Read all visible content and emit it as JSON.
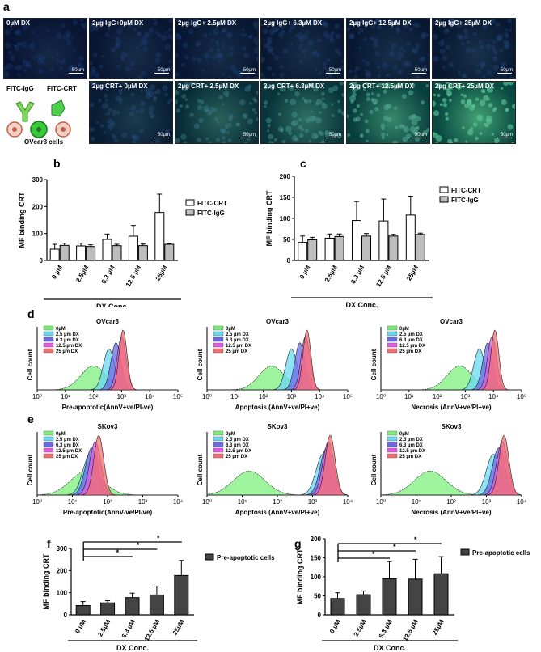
{
  "panel_labels": {
    "a": "a",
    "b": "b",
    "c": "c",
    "d": "d",
    "e": "e",
    "f": "f",
    "g": "g"
  },
  "micro": {
    "scale_bar": "50µm",
    "top_row": [
      {
        "label": "0µM DX",
        "green": 0.0
      },
      {
        "label": "2µg IgG+0µM DX",
        "green": 0.03
      },
      {
        "label": "2µg IgG+ 2.5µM DX",
        "green": 0.04
      },
      {
        "label": "2µg IgG+ 6.3µM DX",
        "green": 0.05
      },
      {
        "label": "2µg IgG+ 12.5µM DX",
        "green": 0.05
      },
      {
        "label": "2µg IgG+ 25µM DX",
        "green": 0.06
      }
    ],
    "bottom_row": [
      {
        "label": "2µg CRT+ 0µM DX",
        "green": 0.12
      },
      {
        "label": "2µg CRT+ 2.5µM DX",
        "green": 0.35
      },
      {
        "label": "2µg CRT+ 6.3µM DX",
        "green": 0.45
      },
      {
        "label": "2µg CRT+ 12.5µM DX",
        "green": 0.6
      },
      {
        "label": "2µg CRT+ 25µM DX",
        "green": 0.75
      }
    ],
    "schematic": {
      "igg": "FITC-IgG",
      "crt": "FITC-CRT",
      "cells": "OVcar3 cells"
    }
  },
  "chart_data": [
    {
      "id": "b",
      "type": "bar",
      "categories": [
        "0 µM",
        "2.5µM",
        "6.3 µM",
        "12.5 µM",
        "25µM"
      ],
      "series": [
        {
          "name": "FITC-CRT",
          "values": [
            42,
            54,
            78,
            90,
            178
          ],
          "errors": [
            18,
            10,
            20,
            40,
            68
          ],
          "color": "#ffffff"
        },
        {
          "name": "FITC-IgG",
          "values": [
            56,
            52,
            55,
            55,
            60
          ],
          "errors": [
            8,
            6,
            5,
            6,
            3
          ],
          "color": "#bdbdbd"
        }
      ],
      "ylabel": "MF binding CRT",
      "xlabel": "DX Conc.",
      "ylim": [
        0,
        300
      ],
      "yticks": [
        0,
        100,
        200,
        300
      ],
      "legend": "top-right"
    },
    {
      "id": "c",
      "type": "bar",
      "categories": [
        "0 µM",
        "2.5µM",
        "6.3 µM",
        "12.5 µM",
        "25µM"
      ],
      "series": [
        {
          "name": "FITC-CRT",
          "values": [
            43,
            53,
            95,
            94,
            108
          ],
          "errors": [
            15,
            10,
            45,
            52,
            45
          ],
          "color": "#ffffff"
        },
        {
          "name": "FITC-IgG",
          "values": [
            49,
            57,
            58,
            58,
            62
          ],
          "errors": [
            6,
            6,
            6,
            4,
            3
          ],
          "color": "#bdbdbd"
        }
      ],
      "ylabel": "MF binding CRT",
      "xlabel": "DX Conc.",
      "ylim": [
        0,
        200
      ],
      "yticks": [
        0,
        50,
        100,
        150,
        200
      ],
      "legend": "right"
    },
    {
      "id": "d1",
      "type": "area",
      "title": "OVcar3",
      "ylabel": "Cell count",
      "xlabel": "Pre-apoptotic(AnnV+ve/PI-ve)",
      "xscale": "log",
      "xlim": [
        1,
        100000
      ],
      "xtick_labels": [
        "10⁰",
        "10¹",
        "10²",
        "10³",
        "10⁴",
        "10⁵"
      ],
      "legend": [
        "0µM",
        "2.5 µm DX",
        "6.3 µm DX",
        "12.5 µm DX",
        "25 µm DX"
      ],
      "peaks_log10": [
        2.0,
        2.55,
        2.8,
        3.0,
        3.05
      ]
    },
    {
      "id": "d2",
      "type": "area",
      "title": "OVcar3",
      "ylabel": "Cell count",
      "xlabel": "Apoptosis (AnnV+ve/PI+ve)",
      "xscale": "log",
      "xlim": [
        1,
        100000
      ],
      "xtick_labels": [
        "10⁰",
        "10¹",
        "10²",
        "10³",
        "10⁴",
        "10⁵"
      ],
      "legend": [
        "0µM",
        "2.5 µm DX",
        "6.3 µm DX",
        "12.5 µm DX",
        "25 µm DX"
      ],
      "peaks_log10": [
        2.3,
        3.0,
        3.3,
        3.5,
        3.55
      ]
    },
    {
      "id": "d3",
      "type": "area",
      "title": "OVcar3",
      "ylabel": "Cell count",
      "xlabel": "Necrosis (AnnV+ve/PI+ve)",
      "xscale": "log",
      "xlim": [
        1,
        100000
      ],
      "xtick_labels": [
        "10⁰",
        "10¹",
        "10²",
        "10³",
        "10⁴",
        "10⁵"
      ],
      "legend": [
        "0µM",
        "2.5 µm DX",
        "6.3 µm DX",
        "12.5 µm DX",
        "25 µm DX"
      ],
      "peaks_log10": [
        2.8,
        3.5,
        3.8,
        3.95,
        4.05
      ]
    },
    {
      "id": "e1",
      "type": "area",
      "title": "SKov3",
      "ylabel": "Cell count",
      "xlabel": "Pre-apoptotic(AnnV-ve/PI-ve)",
      "xscale": "log",
      "xlim": [
        1,
        10000
      ],
      "xtick_labels": [
        "10⁰",
        "10¹",
        "10²",
        "10³",
        "10⁴"
      ],
      "legend": [
        "0µM",
        "2.5 µm DX",
        "6.3 µm DX",
        "12.5 µm DX",
        "25 µm DX"
      ],
      "peaks_log10": [
        1.4,
        1.5,
        1.55,
        1.65,
        1.75
      ]
    },
    {
      "id": "e2",
      "type": "area",
      "title": "SKov3",
      "ylabel": "Cell count",
      "xlabel": "Apoptosis (AnnV+ve/PI+ve)",
      "xscale": "log",
      "xlim": [
        1,
        10000
      ],
      "xtick_labels": [
        "10⁰",
        "10¹",
        "10²",
        "10³",
        "10⁴"
      ],
      "legend": [
        "0µM",
        "2.5 µm DX",
        "6.3 µm DX",
        "12.5 µm DX",
        "25 µm DX"
      ],
      "peaks_log10": [
        1.2,
        3.3,
        3.4,
        3.45,
        3.5
      ]
    },
    {
      "id": "e3",
      "type": "area",
      "title": "SKov3",
      "ylabel": "Cell count",
      "xlabel": "Necrosis (AnnV+ve/PI+ve)",
      "xscale": "log",
      "xlim": [
        1,
        10000
      ],
      "xtick_labels": [
        "10⁰",
        "10¹",
        "10²",
        "10³",
        "10⁴"
      ],
      "legend": [
        "0µM",
        "2.5 µm DX",
        "6.3 µm DX",
        "12.5 µm DX",
        "25 µm DX"
      ],
      "peaks_log10": [
        1.4,
        3.2,
        3.35,
        3.45,
        3.5
      ]
    },
    {
      "id": "f",
      "type": "bar",
      "categories": [
        "0 µM",
        "2.5µM",
        "6.3 µM",
        "12.5 µM",
        "25µM"
      ],
      "series": [
        {
          "name": "Pre-apoptotic cells",
          "values": [
            42,
            54,
            78,
            90,
            178
          ],
          "errors": [
            18,
            10,
            20,
            40,
            68
          ],
          "color": "#444444"
        }
      ],
      "ylabel": "MF binding CRT",
      "xlabel": "DX Conc.",
      "ylim": [
        0,
        300
      ],
      "yticks": [
        0,
        100,
        200,
        300
      ],
      "significance": [
        {
          "from": 0,
          "to": 2,
          "mark": "*"
        },
        {
          "from": 0,
          "to": 3,
          "mark": "*"
        },
        {
          "from": 0,
          "to": 4,
          "mark": "*"
        }
      ],
      "legend": "top-right"
    },
    {
      "id": "g",
      "type": "bar",
      "categories": [
        "0 µM",
        "2.5µM",
        "6.3 µM",
        "12.5 µM",
        "25µM"
      ],
      "series": [
        {
          "name": "Pre-apoptotic cells",
          "values": [
            43,
            53,
            95,
            94,
            108
          ],
          "errors": [
            15,
            10,
            45,
            52,
            45
          ],
          "color": "#444444"
        }
      ],
      "ylabel": "MF binding CRT",
      "xlabel": "DX Conc.",
      "ylim": [
        0,
        200
      ],
      "yticks": [
        0,
        50,
        100,
        150,
        200
      ],
      "significance": [
        {
          "from": 0,
          "to": 2,
          "mark": "*"
        },
        {
          "from": 0,
          "to": 3,
          "mark": "*"
        },
        {
          "from": 0,
          "to": 4,
          "mark": "*"
        }
      ],
      "legend": "top-right"
    }
  ],
  "colors": {
    "hist": [
      "#7cf07c",
      "#67d8f0",
      "#6a6ae8",
      "#e55ae5",
      "#f07070"
    ]
  }
}
